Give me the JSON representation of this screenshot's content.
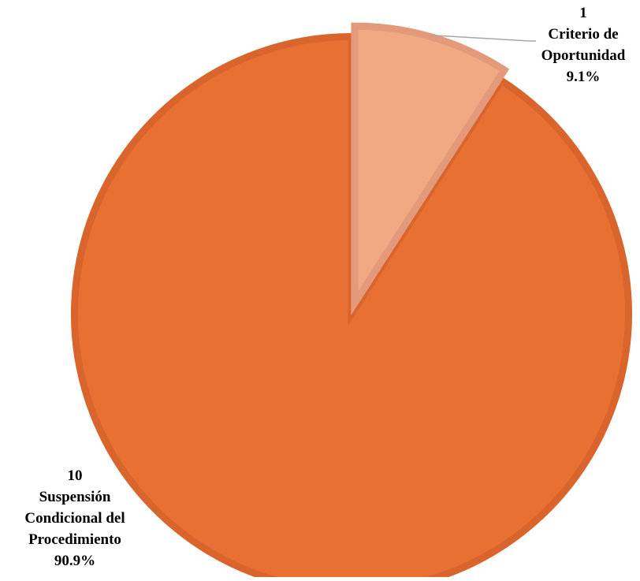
{
  "chart_data": {
    "type": "pie",
    "title": "",
    "start_angle_deg": 0,
    "direction": "clockwise",
    "slices": [
      {
        "label": "Criterio de Oportunidad",
        "value": 1,
        "percent_label": "9.1%",
        "color": "#F0A982",
        "border_color": "#E39A7A",
        "exploded": true
      },
      {
        "label": "Suspensión Condicional del Procedimiento",
        "value": 10,
        "percent_label": "90.9%",
        "color": "#E87033",
        "border_color": "#D9652C",
        "exploded": false
      }
    ],
    "labels": [
      {
        "lines": [
          "1",
          "Criterio de",
          "Oportunidad",
          "9.1%"
        ],
        "leader_line": true
      },
      {
        "lines": [
          "10",
          "Suspensión",
          "Condicional del",
          "Procedimiento",
          "90.9%"
        ],
        "leader_line": false
      }
    ],
    "leader_line_color": "#A6A6A6"
  }
}
